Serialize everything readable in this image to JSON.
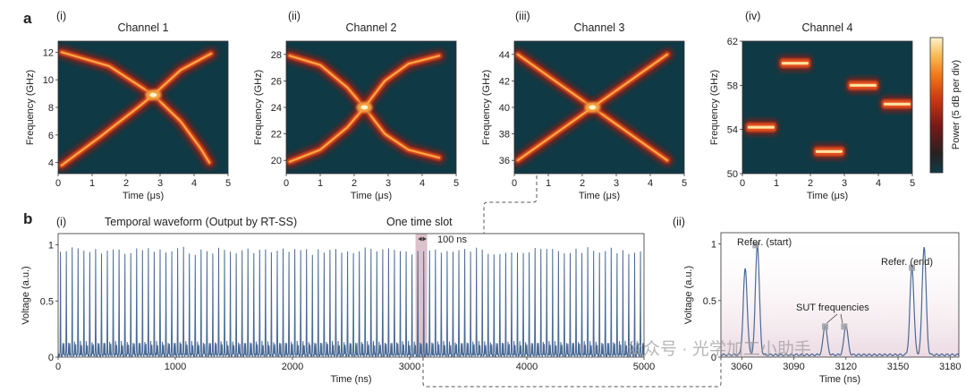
{
  "figure": {
    "panel_a_label": "a",
    "panel_b_label": "b",
    "watermark": "公众号 · 光学加工小助手",
    "colorbar_label": "Power (5 dB per div)",
    "colors": {
      "background": "#0f3a45",
      "trace": "#4a6a95",
      "highlight": "#c49aa8"
    }
  },
  "chart_data": [
    {
      "id": "ch1",
      "type": "heatmap",
      "roman": "(i)",
      "title": "Channel 1",
      "xlabel": "Time (μs)",
      "ylabel": "Frequency (GHz)",
      "xlim": [
        0,
        5
      ],
      "ylim": [
        3.2,
        12.8
      ],
      "xticks": [
        0,
        1,
        2,
        3,
        4,
        5
      ],
      "yticks": [
        4,
        6,
        8,
        10,
        12
      ],
      "traces": [
        {
          "name": "down-chirp",
          "points": [
            [
              0.1,
              12.0
            ],
            [
              1.5,
              11.0
            ],
            [
              2.8,
              8.9
            ],
            [
              3.6,
              7.0
            ],
            [
              4.2,
              5.0
            ],
            [
              4.45,
              4.0
            ]
          ]
        },
        {
          "name": "up-chirp",
          "points": [
            [
              0.1,
              3.8
            ],
            [
              1.2,
              5.8
            ],
            [
              2.3,
              7.9
            ],
            [
              2.8,
              8.9
            ],
            [
              3.6,
              10.7
            ],
            [
              4.5,
              11.9
            ]
          ]
        }
      ]
    },
    {
      "id": "ch2",
      "type": "heatmap",
      "roman": "(ii)",
      "title": "Channel 2",
      "xlabel": "Time (μs)",
      "ylabel": "Frequency (GHz)",
      "xlim": [
        0,
        5
      ],
      "ylim": [
        19,
        29
      ],
      "xticks": [
        0,
        1,
        2,
        3,
        4,
        5
      ],
      "yticks": [
        20,
        22,
        24,
        26,
        28
      ],
      "traces": [
        {
          "name": "down-chirp",
          "points": [
            [
              0.1,
              27.9
            ],
            [
              1.0,
              27.2
            ],
            [
              1.8,
              25.5
            ],
            [
              2.3,
              24.0
            ],
            [
              2.9,
              22.0
            ],
            [
              3.6,
              20.8
            ],
            [
              4.5,
              20.2
            ]
          ]
        },
        {
          "name": "up-chirp",
          "points": [
            [
              0.1,
              19.9
            ],
            [
              1.0,
              20.8
            ],
            [
              1.8,
              22.5
            ],
            [
              2.3,
              24.0
            ],
            [
              2.9,
              26.0
            ],
            [
              3.6,
              27.3
            ],
            [
              4.5,
              27.9
            ]
          ]
        }
      ]
    },
    {
      "id": "ch3",
      "type": "heatmap",
      "roman": "(iii)",
      "title": "Channel 3",
      "xlabel": "Time (μs)",
      "ylabel": "Frequency (GHz)",
      "xlim": [
        0,
        5
      ],
      "ylim": [
        35,
        45
      ],
      "xticks": [
        0,
        1,
        2,
        3,
        4,
        5
      ],
      "yticks": [
        36,
        38,
        40,
        42,
        44
      ],
      "traces": [
        {
          "name": "down-chirp",
          "points": [
            [
              0.1,
              44.0
            ],
            [
              2.3,
              40.0
            ],
            [
              4.5,
              36.0
            ]
          ]
        },
        {
          "name": "up-chirp",
          "points": [
            [
              0.1,
              36.0
            ],
            [
              2.3,
              40.0
            ],
            [
              4.5,
              44.0
            ]
          ]
        }
      ]
    },
    {
      "id": "ch4",
      "type": "heatmap",
      "roman": "(iv)",
      "title": "Channel 4",
      "xlabel": "Time (μs)",
      "ylabel": "Frequency (GHz)",
      "xlim": [
        0,
        5
      ],
      "ylim": [
        50,
        62
      ],
      "xticks": [
        0,
        1,
        2,
        3,
        4,
        5
      ],
      "yticks": [
        50,
        54,
        58,
        62
      ],
      "segments": [
        {
          "t0": 0.1,
          "t1": 1.0,
          "f": 54.2
        },
        {
          "t0": 1.1,
          "t1": 2.0,
          "f": 60.0
        },
        {
          "t0": 2.1,
          "t1": 3.0,
          "f": 52.0
        },
        {
          "t0": 3.1,
          "t1": 4.0,
          "f": 58.0
        },
        {
          "t0": 4.1,
          "t1": 5.0,
          "f": 56.3
        }
      ]
    },
    {
      "id": "b1",
      "type": "line",
      "roman": "(i)",
      "title": "Temporal waveform (Output by RT-SS)",
      "xlabel": "Time (ns)",
      "ylabel": "Voltage (a.u.)",
      "xlim": [
        0,
        5000
      ],
      "ylim": [
        0,
        1.1
      ],
      "xticks": [
        0,
        1000,
        2000,
        3000,
        4000,
        5000
      ],
      "yticks": [
        0,
        0.5,
        1.0
      ],
      "series": {
        "name": "output",
        "period_ns": 50,
        "first_peak_ns": 20,
        "peak_level": 0.96
      },
      "annotations": {
        "slot_label": "One time slot",
        "slot_start_ns": 3050,
        "slot_end_ns": 3150,
        "width_label": "100 ns"
      }
    },
    {
      "id": "b2",
      "type": "line",
      "roman": "(ii)",
      "xlabel": "Time (ns)",
      "ylabel": "Voltage (a.u.)",
      "xlim": [
        3048,
        3185
      ],
      "ylim": [
        0,
        1.1
      ],
      "xticks": [
        3060,
        3090,
        3120,
        3150,
        3180
      ],
      "yticks": [
        0,
        0.5,
        1.0
      ],
      "peaks": [
        {
          "t": 3062,
          "v": 0.76
        },
        {
          "t": 3069,
          "v": 0.98
        },
        {
          "t": 3108,
          "v": 0.26
        },
        {
          "t": 3120,
          "v": 0.26
        },
        {
          "t": 3158,
          "v": 0.78
        },
        {
          "t": 3165,
          "v": 0.96
        }
      ],
      "markers": [
        {
          "t": 3068,
          "v": 0.99
        },
        {
          "t": 3108,
          "v": 0.27
        },
        {
          "t": 3119,
          "v": 0.27
        },
        {
          "t": 3158,
          "v": 0.79
        }
      ],
      "annotations": {
        "start_label": "Refer. (start)",
        "end_label": "Refer. (end)",
        "sut_label": "SUT frequencies"
      }
    }
  ]
}
